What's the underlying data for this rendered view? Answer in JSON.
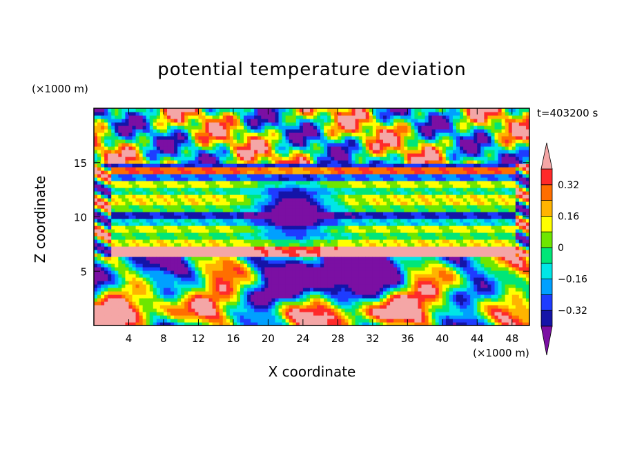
{
  "chart_data": {
    "type": "heatmap",
    "title": "potential temperature deviation",
    "xlabel": "X coordinate",
    "ylabel": "Z coordinate",
    "x_unit": "(×1000 m)",
    "y_unit": "(×1000 m)",
    "time_label": "t=403200 s",
    "xlim": [
      0,
      50
    ],
    "ylim": [
      0,
      20
    ],
    "x_ticks": [
      4,
      8,
      12,
      16,
      20,
      24,
      28,
      32,
      36,
      40,
      44,
      48
    ],
    "y_ticks": [
      5,
      10,
      15
    ],
    "colorbar": {
      "levels": [
        -0.4,
        -0.32,
        -0.24,
        -0.16,
        -0.08,
        0,
        0.08,
        0.16,
        0.24,
        0.32,
        0.4
      ],
      "tick_labels": [
        "0.32",
        "0.16",
        "0",
        "−0.16",
        "−0.32"
      ],
      "tick_values": [
        0.32,
        0.16,
        0,
        -0.16,
        -0.32
      ],
      "colors": [
        "#7b0fa3",
        "#1414a8",
        "#1e3cff",
        "#00a0ff",
        "#00e6e6",
        "#00e678",
        "#6ee600",
        "#ffff00",
        "#ffb400",
        "#ff6e00",
        "#ff2a2a",
        "#f4a6a6"
      ],
      "extend": "both"
    },
    "description_bands": [
      {
        "z_range": [
          0,
          6
        ],
        "pattern": "convective plumes, mixed warm/cold"
      },
      {
        "z_range": [
          6,
          14
        ],
        "pattern": "horizontal layered stripes"
      },
      {
        "z_range": [
          14,
          20
        ],
        "pattern": "mixed warm/cold patches"
      }
    ]
  }
}
